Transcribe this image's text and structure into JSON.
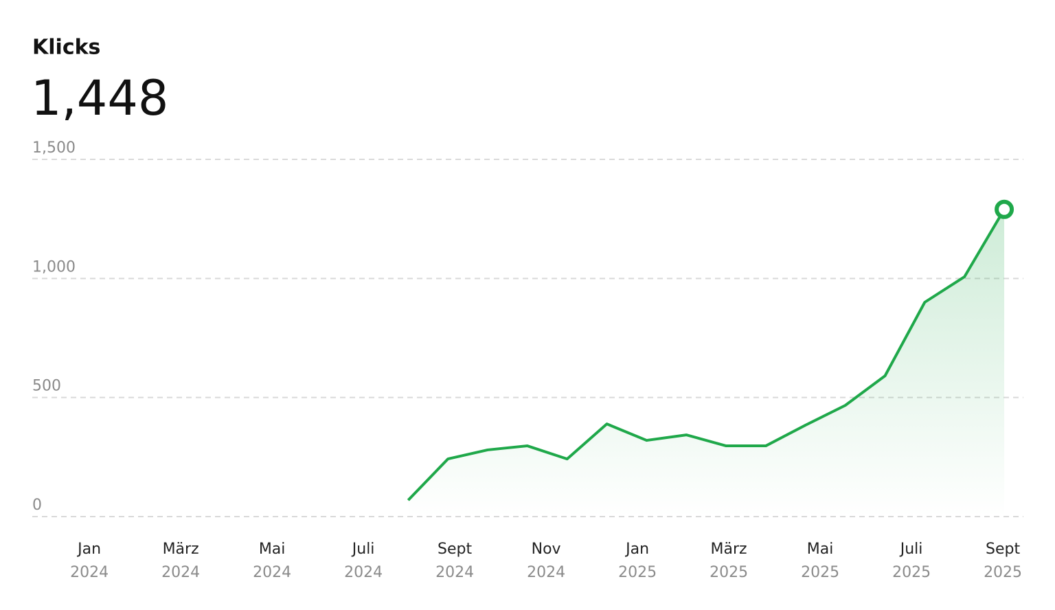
{
  "chart_data": {
    "type": "line",
    "title": "Klicks",
    "total": "1,448",
    "x": [
      6.98,
      7.85,
      8.72,
      9.59,
      10.46,
      11.33,
      12.2,
      13.07,
      13.94,
      14.81,
      15.68,
      16.55,
      17.42,
      18.29,
      19.16,
      20.03
    ],
    "series": [
      {
        "name": "Klicks",
        "color": "#1fa84a",
        "values": [
          69,
          242,
          280,
          297,
          242,
          389,
          320,
          343,
          297,
          297,
          384,
          467,
          591,
          900,
          1007,
          1290
        ]
      }
    ],
    "xlim": [
      -1.25,
      20.45
    ],
    "xticks": [
      {
        "value": 0,
        "label": "Jan 2024"
      },
      {
        "value": 2,
        "label": "März 2024"
      },
      {
        "value": 4,
        "label": "Mai 2024"
      },
      {
        "value": 6,
        "label": "Juli 2024"
      },
      {
        "value": 8,
        "label": "Sept 2024"
      },
      {
        "value": 10,
        "label": "Nov 2024"
      },
      {
        "value": 12,
        "label": "Jan 2025"
      },
      {
        "value": 14,
        "label": "März 2025"
      },
      {
        "value": 16,
        "label": "Mai 2025"
      },
      {
        "value": 18,
        "label": "Juli 2025"
      },
      {
        "value": 20,
        "label": "Sept 2025"
      }
    ],
    "ylim": [
      0,
      1500
    ],
    "yticks": [
      0,
      500,
      {
        "value": 1000,
        "label": "1,000"
      },
      {
        "value": 1500,
        "label": "1,500"
      }
    ],
    "grid": true
  }
}
